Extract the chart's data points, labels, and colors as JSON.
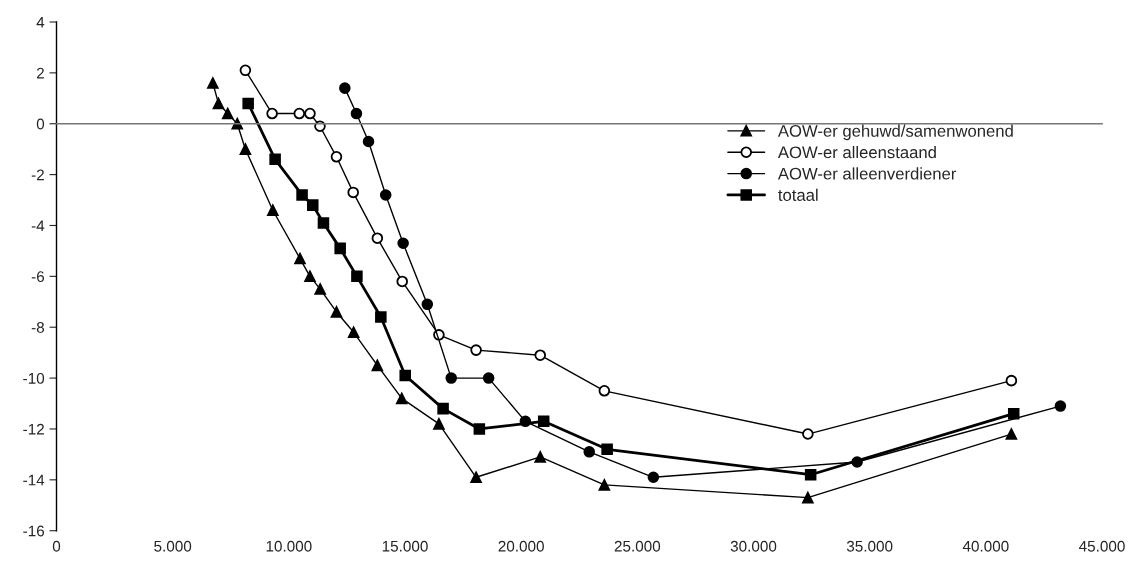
{
  "chart_data": {
    "type": "line",
    "xlim": [
      0,
      45000
    ],
    "ylim": [
      -16,
      4
    ],
    "xticks": [
      0,
      {
        "value": 5000,
        "label": "5.000"
      },
      {
        "value": 10000,
        "label": "10.000"
      },
      {
        "value": 15000,
        "label": "15.000"
      },
      {
        "value": 20000,
        "label": "20.000"
      },
      {
        "value": 25000,
        "label": "25.000"
      },
      {
        "value": 30000,
        "label": "30.000"
      },
      {
        "value": 35000,
        "label": "35.000"
      },
      {
        "value": 40000,
        "label": "40.000"
      },
      {
        "value": 45000,
        "label": "45.000"
      }
    ],
    "yticks": [
      -16,
      -14,
      -12,
      -10,
      -8,
      -6,
      -4,
      -2,
      0,
      2,
      4
    ],
    "legend": "right",
    "line_style": "solid",
    "series": [
      {
        "name": "AOW-er gehuwd/samenwonend",
        "color": "#000000",
        "marker": "triangle",
        "x": [
          6730,
          6970,
          7370,
          7780,
          8130,
          9310,
          10480,
          10910,
          11350,
          12050,
          12790,
          13810,
          14860,
          16460,
          18060,
          20820,
          23580,
          32340,
          41100
        ],
        "values": [
          1.6,
          0.8,
          0.4,
          0.0,
          -1.0,
          -3.4,
          -5.3,
          -6.0,
          -6.5,
          -7.4,
          -8.2,
          -9.5,
          -10.8,
          -11.8,
          -13.9,
          -13.1,
          -14.2,
          -14.7,
          -12.2
        ]
      },
      {
        "name": "AOW-er alleenstaand",
        "color": "#000000",
        "marker": "circle",
        "x": [
          8130,
          9280,
          10450,
          10910,
          11340,
          12050,
          12770,
          13810,
          14880,
          16460,
          18060,
          20820,
          23580,
          32340,
          41100
        ],
        "values": [
          2.1,
          0.4,
          0.4,
          0.4,
          -0.1,
          -1.3,
          -2.7,
          -4.5,
          -6.2,
          -8.3,
          -8.9,
          -9.1,
          -10.5,
          -12.2,
          -10.1
        ]
      },
      {
        "name": "AOW-er alleenverdiener",
        "color": "#000000",
        "marker": "circle",
        "x": [
          12410,
          12910,
          13430,
          14170,
          14920,
          15960,
          16990,
          18600,
          20180,
          22930,
          25690,
          34460,
          43210
        ],
        "values": [
          1.4,
          0.4,
          -0.7,
          -2.8,
          -4.7,
          -7.1,
          -10.0,
          -10.0,
          -11.7,
          -12.9,
          -13.9,
          -13.3,
          -11.1
        ]
      },
      {
        "name": "totaal",
        "color": "#000000",
        "marker": "square",
        "x": [
          8250,
          9410,
          10570,
          11030,
          11490,
          12210,
          12930,
          13960,
          15010,
          16640,
          18200,
          20970,
          23700,
          32460,
          41200
        ],
        "values": [
          0.8,
          -1.4,
          -2.8,
          -3.2,
          -3.9,
          -4.9,
          -6.0,
          -7.6,
          -9.9,
          -11.2,
          -12.0,
          -11.7,
          -12.8,
          -13.8,
          -11.4
        ]
      }
    ]
  }
}
